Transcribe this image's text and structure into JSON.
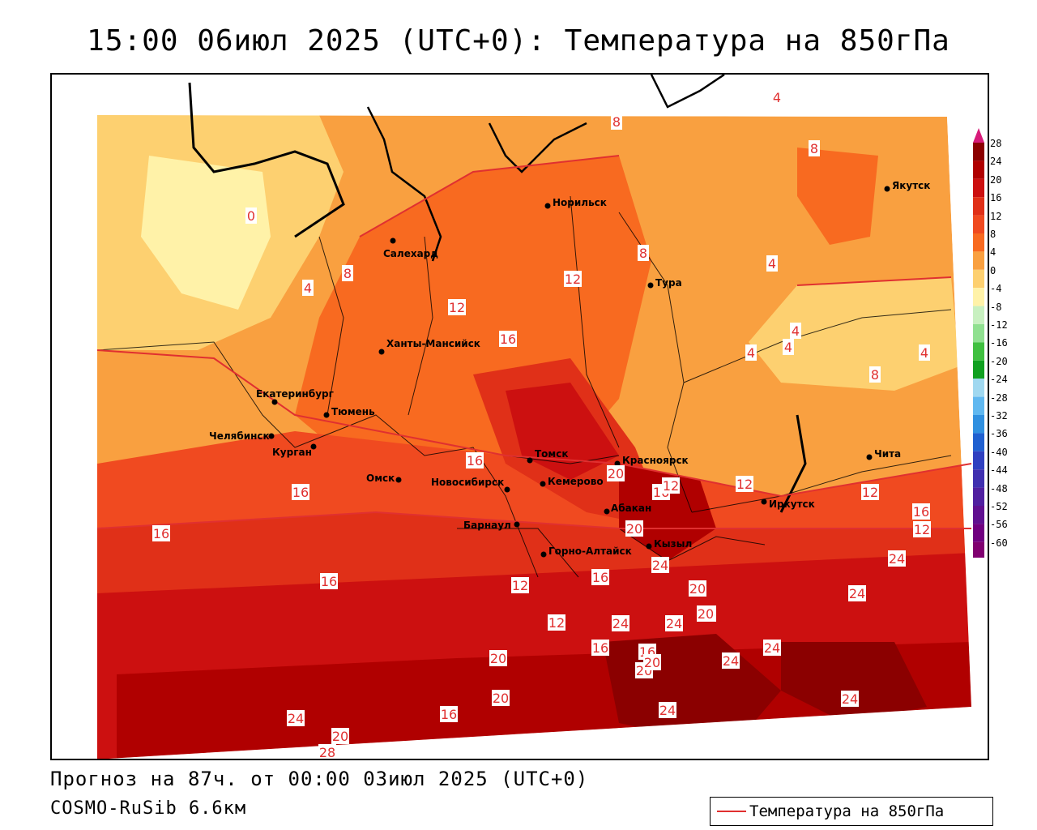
{
  "title": "15:00 06июл 2025 (UTC+0): Температура на 850гПа",
  "footer": {
    "forecast": "Прогноз на 87ч. от 00:00 03июл 2025 (UTC+0)",
    "model": "COSMO-RuSib 6.6км"
  },
  "legend": {
    "label": "Температура на 850гПа",
    "color": "#e03030"
  },
  "colorbar": {
    "labels": [
      "28",
      "24",
      "20",
      "16",
      "12",
      "8",
      "4",
      "0",
      "-4",
      "-8",
      "-12",
      "-16",
      "-20",
      "-24",
      "-28",
      "-32",
      "-36",
      "-40",
      "-44",
      "-48",
      "-52",
      "-56",
      "-60"
    ],
    "colors": [
      "#8b0000",
      "#b00000",
      "#cc1010",
      "#e03018",
      "#f04a20",
      "#f86a20",
      "#f9a040",
      "#fdd070",
      "#fff2a8",
      "#c8f0c0",
      "#90e090",
      "#40c040",
      "#10a020",
      "#a0d8f0",
      "#60b8f0",
      "#3090e0",
      "#2060d0",
      "#3040c0",
      "#4030b0",
      "#5020a0",
      "#601090",
      "#700080",
      "#800070"
    ]
  },
  "cities": [
    {
      "name": "Норильск"
    },
    {
      "name": "Якутск"
    },
    {
      "name": "Салехард"
    },
    {
      "name": "Тура"
    },
    {
      "name": "Ханты-Мансийск"
    },
    {
      "name": "Екатеринбург"
    },
    {
      "name": "Тюмень"
    },
    {
      "name": "Челябинск"
    },
    {
      "name": "Курган"
    },
    {
      "name": "Омск"
    },
    {
      "name": "Томск"
    },
    {
      "name": "Красноярск"
    },
    {
      "name": "Новосибирск"
    },
    {
      "name": "Кемерово"
    },
    {
      "name": "Абакан"
    },
    {
      "name": "Барнаул"
    },
    {
      "name": "Кызыл"
    },
    {
      "name": "Горно-Алтайск"
    },
    {
      "name": "Иркутск"
    },
    {
      "name": "Чита"
    }
  ],
  "isotherm_labels": [
    "4",
    "8",
    "0",
    "4",
    "8",
    "8",
    "12",
    "8",
    "4",
    "4",
    "4",
    "4",
    "4",
    "8",
    "12",
    "16",
    "16",
    "16",
    "20",
    "16",
    "12",
    "12",
    "12",
    "16",
    "16",
    "16",
    "20",
    "24",
    "16",
    "20",
    "24",
    "24",
    "20",
    "24",
    "16",
    "20",
    "24",
    "16",
    "20",
    "24",
    "16",
    "20",
    "20",
    "24",
    "20",
    "24",
    "24",
    "24",
    "28",
    "20",
    "12",
    "12",
    "16",
    "12"
  ]
}
